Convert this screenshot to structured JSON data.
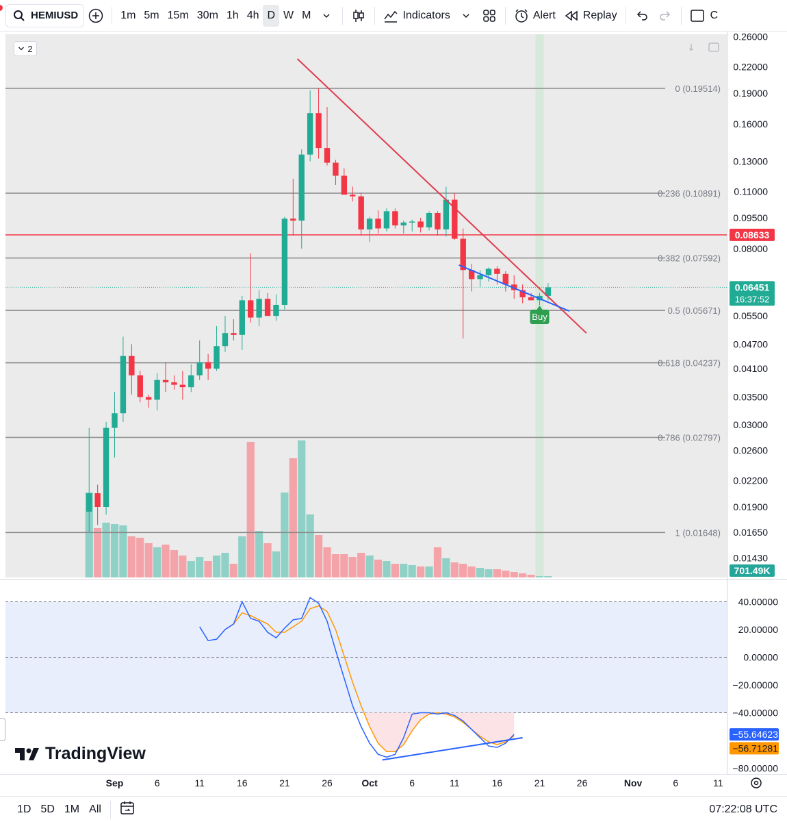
{
  "toolbar": {
    "symbol": "HEMIUSD",
    "intervals": [
      "1m",
      "5m",
      "15m",
      "30m",
      "1h",
      "4h",
      "D",
      "W",
      "M"
    ],
    "active_interval": "D",
    "indicators_label": "Indicators",
    "alert_label": "Alert",
    "replay_label": "Replay",
    "cut_label": "C"
  },
  "legend": {
    "collapse_count": "2"
  },
  "price_axis": {
    "ticks": [
      {
        "label": "0.26000",
        "v": 0.26
      },
      {
        "label": "0.22000",
        "v": 0.22
      },
      {
        "label": "0.19000",
        "v": 0.19
      },
      {
        "label": "0.16000",
        "v": 0.16
      },
      {
        "label": "0.13000",
        "v": 0.13
      },
      {
        "label": "0.11000",
        "v": 0.11
      },
      {
        "label": "0.09500",
        "v": 0.095
      },
      {
        "label": "0.08000",
        "v": 0.08
      },
      {
        "label": "0.05500",
        "v": 0.055
      },
      {
        "label": "0.04700",
        "v": 0.047
      },
      {
        "label": "0.04100",
        "v": 0.041
      },
      {
        "label": "0.03500",
        "v": 0.035
      },
      {
        "label": "0.03000",
        "v": 0.03
      },
      {
        "label": "0.02600",
        "v": 0.026
      },
      {
        "label": "0.02200",
        "v": 0.022
      },
      {
        "label": "0.01900",
        "v": 0.019
      },
      {
        "label": "0.01650",
        "v": 0.0165
      },
      {
        "label": "0.01430",
        "v": 0.0143
      }
    ],
    "hline_label": "0.08633",
    "hline_value": 0.08633,
    "last_price": "0.06451",
    "last_value": 0.06451,
    "countdown": "16:37:52",
    "volume_label": "701.49K"
  },
  "fib_levels": [
    {
      "label": "0 (0.19514)",
      "v": 0.19514
    },
    {
      "label": "0.236 (0.10891)",
      "v": 0.10891
    },
    {
      "label": "0.382 (0.07592)",
      "v": 0.07592
    },
    {
      "label": "0.5 (0.05671)",
      "v": 0.05671
    },
    {
      "label": "0.618 (0.04237)",
      "v": 0.04237
    },
    {
      "label": "0.786 (0.02797)",
      "v": 0.02797
    },
    {
      "label": "1 (0.01648)",
      "v": 0.01648
    }
  ],
  "buy_label": "Buy",
  "osc_axis": {
    "ticks": [
      {
        "label": "40.00000",
        "v": 40
      },
      {
        "label": "20.00000",
        "v": 20
      },
      {
        "label": "0.00000",
        "v": 0
      },
      {
        "label": "−20.00000",
        "v": -20
      },
      {
        "label": "−40.00000",
        "v": -40
      },
      {
        "label": "−80.00000",
        "v": -80
      }
    ],
    "k_label": "−55.64623",
    "k_value": -55.64623,
    "d_label": "−56.71281",
    "d_value": -56.71281
  },
  "time_axis": [
    {
      "label": "Sep",
      "d": 1
    },
    {
      "label": "6",
      "d": 6
    },
    {
      "label": "11",
      "d": 11
    },
    {
      "label": "16",
      "d": 16
    },
    {
      "label": "21",
      "d": 21
    },
    {
      "label": "26",
      "d": 26
    },
    {
      "label": "Oct",
      "d": 31
    },
    {
      "label": "6",
      "d": 36
    },
    {
      "label": "11",
      "d": 41
    },
    {
      "label": "16",
      "d": 46
    },
    {
      "label": "21",
      "d": 51
    },
    {
      "label": "26",
      "d": 56
    },
    {
      "label": "Nov",
      "d": 62
    },
    {
      "label": "6",
      "d": 67
    },
    {
      "label": "11",
      "d": 72
    }
  ],
  "bottom_bar": {
    "ranges": [
      "1D",
      "5D",
      "1M",
      "All"
    ],
    "clock": "07:22:08 UTC"
  },
  "brand": "TradingView",
  "colors": {
    "up": "#22ab94",
    "down": "#f23645",
    "trend": "#e03b4e",
    "blue": "#2962ff",
    "osc_d": "#ff9800",
    "osc_k": "#2962ff"
  },
  "chart_data": {
    "type": "candlestick",
    "note_units": "x = day index with Sep 1 = 1, Oct 1 = 31",
    "candles": [
      {
        "d": -2,
        "o": 0.0185,
        "h": 0.0295,
        "l": 0.0165,
        "c": 0.0205
      },
      {
        "d": -1,
        "o": 0.0205,
        "h": 0.0215,
        "l": 0.0172,
        "c": 0.019
      },
      {
        "d": 0,
        "o": 0.019,
        "h": 0.0305,
        "l": 0.0182,
        "c": 0.0295
      },
      {
        "d": 1,
        "o": 0.0295,
        "h": 0.036,
        "l": 0.025,
        "c": 0.032
      },
      {
        "d": 2,
        "o": 0.032,
        "h": 0.049,
        "l": 0.0305,
        "c": 0.044
      },
      {
        "d": 3,
        "o": 0.044,
        "h": 0.047,
        "l": 0.0355,
        "c": 0.0395
      },
      {
        "d": 4,
        "o": 0.0395,
        "h": 0.0405,
        "l": 0.034,
        "c": 0.035
      },
      {
        "d": 5,
        "o": 0.035,
        "h": 0.0355,
        "l": 0.033,
        "c": 0.0345
      },
      {
        "d": 6,
        "o": 0.0345,
        "h": 0.04,
        "l": 0.0325,
        "c": 0.0385
      },
      {
        "d": 7,
        "o": 0.0385,
        "h": 0.0425,
        "l": 0.036,
        "c": 0.038
      },
      {
        "d": 8,
        "o": 0.038,
        "h": 0.0395,
        "l": 0.0365,
        "c": 0.0375
      },
      {
        "d": 9,
        "o": 0.0375,
        "h": 0.0405,
        "l": 0.0345,
        "c": 0.037
      },
      {
        "d": 10,
        "o": 0.037,
        "h": 0.042,
        "l": 0.036,
        "c": 0.0395
      },
      {
        "d": 11,
        "o": 0.0395,
        "h": 0.048,
        "l": 0.0385,
        "c": 0.0425
      },
      {
        "d": 12,
        "o": 0.0425,
        "h": 0.0445,
        "l": 0.0385,
        "c": 0.041
      },
      {
        "d": 13,
        "o": 0.041,
        "h": 0.052,
        "l": 0.0405,
        "c": 0.0465
      },
      {
        "d": 14,
        "o": 0.0465,
        "h": 0.055,
        "l": 0.045,
        "c": 0.05
      },
      {
        "d": 15,
        "o": 0.05,
        "h": 0.054,
        "l": 0.048,
        "c": 0.0495
      },
      {
        "d": 16,
        "o": 0.0495,
        "h": 0.0615,
        "l": 0.0455,
        "c": 0.06
      },
      {
        "d": 17,
        "o": 0.06,
        "h": 0.078,
        "l": 0.053,
        "c": 0.0545
      },
      {
        "d": 18,
        "o": 0.0545,
        "h": 0.0635,
        "l": 0.052,
        "c": 0.0605
      },
      {
        "d": 19,
        "o": 0.0605,
        "h": 0.0625,
        "l": 0.055,
        "c": 0.055
      },
      {
        "d": 20,
        "o": 0.055,
        "h": 0.062,
        "l": 0.0535,
        "c": 0.0585
      },
      {
        "d": 21,
        "o": 0.0585,
        "h": 0.0955,
        "l": 0.057,
        "c": 0.0945
      },
      {
        "d": 22,
        "o": 0.0945,
        "h": 0.118,
        "l": 0.086,
        "c": 0.0935
      },
      {
        "d": 23,
        "o": 0.0935,
        "h": 0.139,
        "l": 0.08,
        "c": 0.135
      },
      {
        "d": 24,
        "o": 0.135,
        "h": 0.193,
        "l": 0.13,
        "c": 0.17
      },
      {
        "d": 25,
        "o": 0.17,
        "h": 0.19514,
        "l": 0.132,
        "c": 0.14
      },
      {
        "d": 26,
        "o": 0.14,
        "h": 0.176,
        "l": 0.127,
        "c": 0.129
      },
      {
        "d": 27,
        "o": 0.129,
        "h": 0.131,
        "l": 0.114,
        "c": 0.12
      },
      {
        "d": 28,
        "o": 0.12,
        "h": 0.125,
        "l": 0.109,
        "c": 0.108
      },
      {
        "d": 29,
        "o": 0.108,
        "h": 0.113,
        "l": 0.104,
        "c": 0.107
      },
      {
        "d": 30,
        "o": 0.107,
        "h": 0.109,
        "l": 0.086,
        "c": 0.089
      },
      {
        "d": 31,
        "o": 0.089,
        "h": 0.0955,
        "l": 0.083,
        "c": 0.0945
      },
      {
        "d": 32,
        "o": 0.0945,
        "h": 0.099,
        "l": 0.087,
        "c": 0.0895
      },
      {
        "d": 33,
        "o": 0.0895,
        "h": 0.1,
        "l": 0.088,
        "c": 0.0985
      },
      {
        "d": 34,
        "o": 0.0985,
        "h": 0.1,
        "l": 0.0895,
        "c": 0.091
      },
      {
        "d": 35,
        "o": 0.091,
        "h": 0.0935,
        "l": 0.087,
        "c": 0.0925
      },
      {
        "d": 36,
        "o": 0.0925,
        "h": 0.094,
        "l": 0.088,
        "c": 0.093
      },
      {
        "d": 37,
        "o": 0.093,
        "h": 0.095,
        "l": 0.0875,
        "c": 0.09
      },
      {
        "d": 38,
        "o": 0.09,
        "h": 0.0985,
        "l": 0.0885,
        "c": 0.0975
      },
      {
        "d": 39,
        "o": 0.0975,
        "h": 0.0985,
        "l": 0.086,
        "c": 0.089
      },
      {
        "d": 40,
        "o": 0.089,
        "h": 0.113,
        "l": 0.0855,
        "c": 0.105
      },
      {
        "d": 41,
        "o": 0.105,
        "h": 0.109,
        "l": 0.084,
        "c": 0.0845
      },
      {
        "d": 42,
        "o": 0.0845,
        "h": 0.0895,
        "l": 0.0485,
        "c": 0.071
      },
      {
        "d": 43,
        "o": 0.071,
        "h": 0.0735,
        "l": 0.063,
        "c": 0.0675
      },
      {
        "d": 44,
        "o": 0.0675,
        "h": 0.071,
        "l": 0.0645,
        "c": 0.069
      },
      {
        "d": 45,
        "o": 0.069,
        "h": 0.072,
        "l": 0.0665,
        "c": 0.0715
      },
      {
        "d": 46,
        "o": 0.0715,
        "h": 0.0725,
        "l": 0.0655,
        "c": 0.0695
      },
      {
        "d": 47,
        "o": 0.0695,
        "h": 0.0705,
        "l": 0.063,
        "c": 0.0655
      },
      {
        "d": 48,
        "o": 0.0655,
        "h": 0.069,
        "l": 0.0605,
        "c": 0.0635
      },
      {
        "d": 49,
        "o": 0.0635,
        "h": 0.0655,
        "l": 0.059,
        "c": 0.061
      },
      {
        "d": 50,
        "o": 0.061,
        "h": 0.0625,
        "l": 0.06,
        "c": 0.06
      },
      {
        "d": 51,
        "o": 0.06,
        "h": 0.0625,
        "l": 0.0585,
        "c": 0.0615
      },
      {
        "d": 52,
        "o": 0.0615,
        "h": 0.066,
        "l": 0.06,
        "c": 0.0645
      }
    ],
    "volume": [
      0.62,
      0.36,
      0.4,
      0.39,
      0.38,
      0.3,
      0.29,
      0.25,
      0.22,
      0.24,
      0.2,
      0.16,
      0.12,
      0.15,
      0.12,
      0.16,
      0.18,
      0.1,
      0.3,
      0.99,
      0.34,
      0.25,
      0.19,
      0.62,
      0.87,
      1.0,
      0.46,
      0.31,
      0.22,
      0.17,
      0.17,
      0.15,
      0.18,
      0.16,
      0.13,
      0.12,
      0.1,
      0.1,
      0.09,
      0.08,
      0.08,
      0.22,
      0.14,
      0.11,
      0.1,
      0.08,
      0.07,
      0.06,
      0.06,
      0.05,
      0.04,
      0.03,
      0.02,
      0.01,
      0.01
    ],
    "osc_k": [
      [
        11,
        22
      ],
      [
        12,
        12
      ],
      [
        13,
        13
      ],
      [
        14,
        20
      ],
      [
        15,
        24
      ],
      [
        16,
        40
      ],
      [
        17,
        28
      ],
      [
        18,
        26
      ],
      [
        19,
        18
      ],
      [
        20,
        14
      ],
      [
        21,
        21
      ],
      [
        22,
        27
      ],
      [
        23,
        28
      ],
      [
        24,
        43
      ],
      [
        25,
        39
      ],
      [
        26,
        26
      ],
      [
        27,
        5
      ],
      [
        28,
        -15
      ],
      [
        29,
        -35
      ],
      [
        30,
        -50
      ],
      [
        31,
        -62
      ],
      [
        32,
        -70
      ],
      [
        33,
        -72
      ],
      [
        34,
        -70
      ],
      [
        35,
        -58
      ],
      [
        36,
        -41
      ],
      [
        37,
        -40
      ],
      [
        38,
        -40
      ],
      [
        39,
        -41
      ],
      [
        40,
        -40
      ],
      [
        41,
        -42
      ],
      [
        42,
        -46
      ],
      [
        43,
        -52
      ],
      [
        44,
        -58
      ],
      [
        45,
        -64
      ],
      [
        46,
        -65
      ],
      [
        47,
        -62
      ],
      [
        48,
        -55.6
      ]
    ],
    "osc_d": [
      [
        14,
        20
      ],
      [
        15,
        24
      ],
      [
        16,
        32
      ],
      [
        17,
        30
      ],
      [
        18,
        27
      ],
      [
        19,
        24
      ],
      [
        20,
        18
      ],
      [
        21,
        18
      ],
      [
        22,
        22
      ],
      [
        23,
        26
      ],
      [
        24,
        35
      ],
      [
        25,
        37
      ],
      [
        26,
        33
      ],
      [
        27,
        20
      ],
      [
        28,
        1
      ],
      [
        29,
        -18
      ],
      [
        30,
        -35
      ],
      [
        31,
        -50
      ],
      [
        32,
        -62
      ],
      [
        33,
        -68
      ],
      [
        34,
        -68
      ],
      [
        35,
        -63
      ],
      [
        36,
        -53
      ],
      [
        37,
        -45
      ],
      [
        38,
        -41
      ],
      [
        39,
        -40
      ],
      [
        40,
        -41
      ],
      [
        41,
        -43
      ],
      [
        42,
        -47
      ],
      [
        43,
        -52
      ],
      [
        44,
        -57
      ],
      [
        45,
        -61
      ],
      [
        46,
        -63
      ],
      [
        47,
        -61
      ],
      [
        48,
        -56.7
      ]
    ],
    "downtrend_line": [
      [
        22.5,
        0.23
      ],
      [
        56.5,
        0.05
      ]
    ],
    "support_line": [
      [
        41.5,
        0.073
      ],
      [
        54.5,
        0.0565
      ]
    ],
    "osc_trend_line": [
      [
        32.5,
        -74
      ],
      [
        49,
        -58
      ]
    ],
    "buy_marker_day": 51
  }
}
